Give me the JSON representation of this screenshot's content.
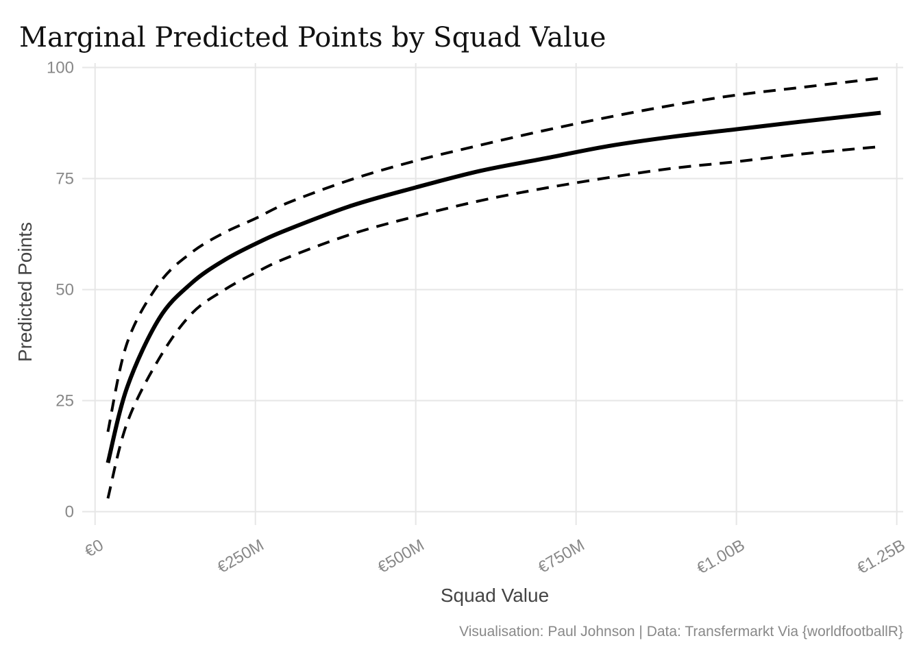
{
  "chart_data": {
    "type": "line",
    "title": "Marginal Predicted Points by Squad Value",
    "xlabel": "Squad Value",
    "ylabel": "Predicted Points",
    "caption": "Visualisation: Paul Johnson | Data: Transfermarkt Via {worldfootballR}",
    "xlim": [
      -20000000,
      1260000000
    ],
    "ylim": [
      -3,
      101
    ],
    "x_ticks": [
      0,
      250000000,
      500000000,
      750000000,
      1000000000,
      1250000000
    ],
    "x_tick_labels": [
      "€0",
      "€250M",
      "€500M",
      "€750M",
      "€1.00B",
      "€1.25B"
    ],
    "y_ticks": [
      0,
      25,
      50,
      75,
      100
    ],
    "y_tick_labels": [
      "0",
      "25",
      "50",
      "75",
      "100"
    ],
    "grid": true,
    "legend": "none",
    "series": [
      {
        "role": "fit",
        "style": "solid",
        "color": "#000000",
        "x": [
          20000000,
          50000000,
          100000000,
          150000000,
          200000000,
          250000000,
          300000000,
          400000000,
          500000000,
          600000000,
          700000000,
          800000000,
          900000000,
          1000000000,
          1100000000,
          1225000000
        ],
        "y": [
          11,
          28,
          43.5,
          51.4,
          56.5,
          60.3,
          63.5,
          68.9,
          73,
          76.7,
          79.5,
          82.3,
          84.4,
          86.1,
          87.8,
          89.8
        ]
      },
      {
        "role": "upper",
        "style": "dashed",
        "color": "#000000",
        "x": [
          20000000,
          50000000,
          100000000,
          150000000,
          200000000,
          250000000,
          300000000,
          400000000,
          500000000,
          600000000,
          700000000,
          800000000,
          900000000,
          1000000000,
          1100000000,
          1225000000
        ],
        "y": [
          18,
          38,
          51.4,
          58.3,
          62.7,
          66,
          69.5,
          74.8,
          79,
          82.5,
          85.8,
          88.8,
          91.5,
          93.8,
          95.5,
          97.6
        ]
      },
      {
        "role": "lower",
        "style": "dashed",
        "color": "#000000",
        "x": [
          20000000,
          50000000,
          100000000,
          150000000,
          200000000,
          250000000,
          300000000,
          400000000,
          500000000,
          600000000,
          700000000,
          800000000,
          900000000,
          1000000000,
          1100000000,
          1225000000
        ],
        "y": [
          3,
          20,
          34.5,
          44.5,
          49.8,
          53.8,
          57.2,
          62.5,
          66.5,
          70,
          72.8,
          75.2,
          77.3,
          78.8,
          80.5,
          82.2
        ]
      }
    ]
  }
}
